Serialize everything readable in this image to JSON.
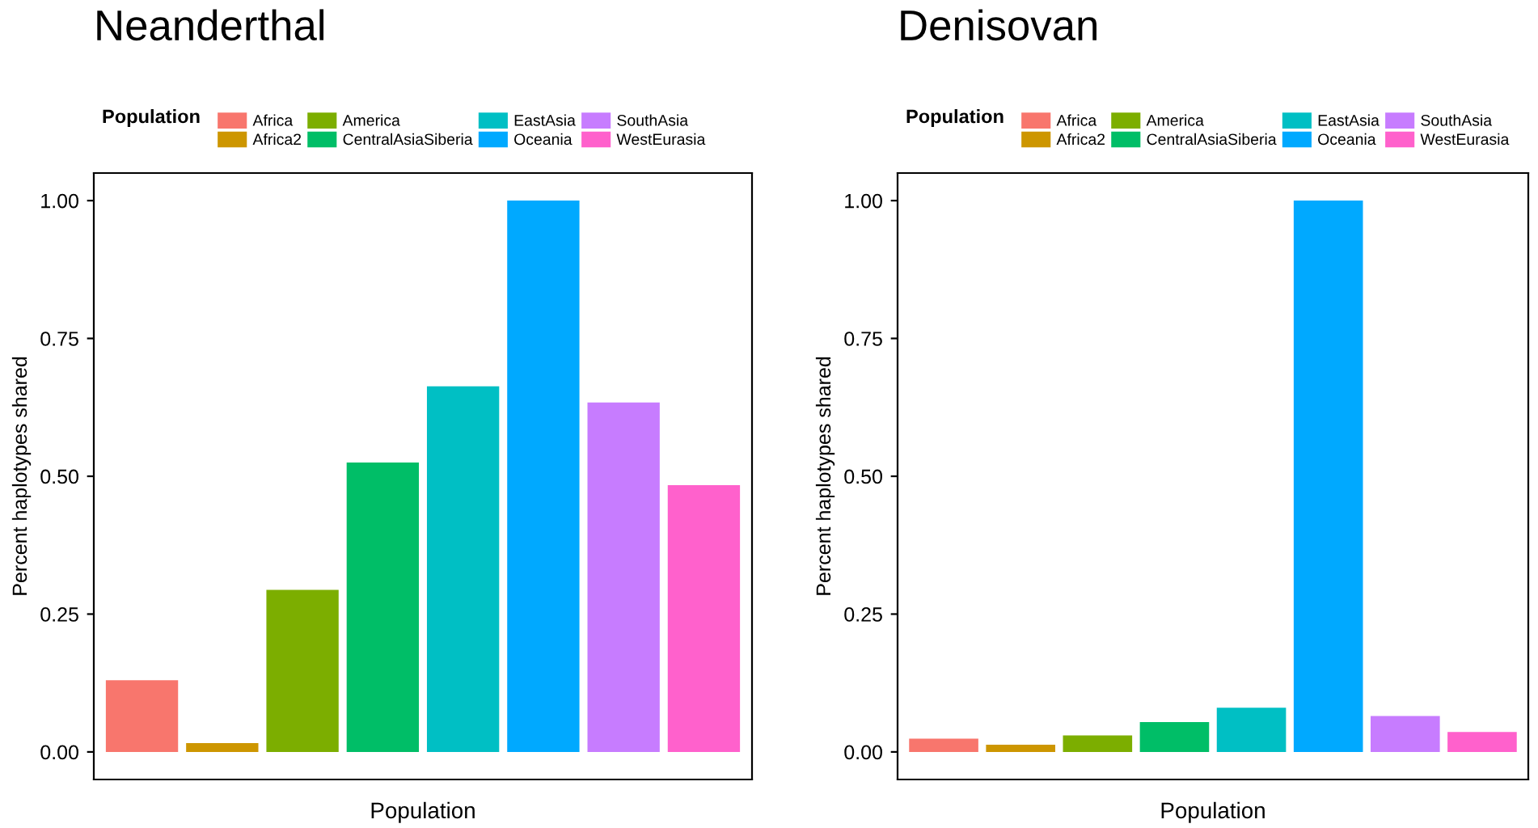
{
  "chart_data": [
    {
      "type": "bar",
      "title": "Neanderthal",
      "xlabel": "Population",
      "ylabel": "Percent haplotypes shared",
      "legend_title": "Population",
      "legend": "top",
      "tick_labels": "y",
      "categories": [
        null,
        null,
        null,
        null,
        null,
        null,
        null,
        null
      ],
      "series": [
        {
          "name": "Africa",
          "color": "#f8766d",
          "values": [
            0.13,
            null,
            null,
            null,
            null,
            null,
            null,
            null
          ]
        },
        {
          "name": "Africa2",
          "color": "#cd9600",
          "values": [
            null,
            0.016,
            null,
            null,
            null,
            null,
            null,
            null
          ]
        },
        {
          "name": "America",
          "color": "#7cae00",
          "values": [
            null,
            null,
            0.294,
            null,
            null,
            null,
            null,
            null
          ]
        },
        {
          "name": "CentralAsiaSiberia",
          "color": "#00be67",
          "values": [
            null,
            null,
            null,
            0.525,
            null,
            null,
            null,
            null
          ]
        },
        {
          "name": "EastAsia",
          "color": "#00bfc4",
          "values": [
            null,
            null,
            null,
            null,
            0.663,
            null,
            null,
            null
          ]
        },
        {
          "name": "Oceania",
          "color": "#00a9ff",
          "values": [
            null,
            null,
            null,
            null,
            null,
            1.0,
            null,
            null
          ]
        },
        {
          "name": "SouthAsia",
          "color": "#c77cff",
          "values": [
            null,
            null,
            null,
            null,
            null,
            null,
            0.634,
            null
          ]
        },
        {
          "name": "WestEurasia",
          "color": "#ff61cc",
          "values": [
            null,
            null,
            null,
            null,
            null,
            null,
            null,
            0.484
          ]
        }
      ],
      "ylim": [
        -0.05,
        1.05
      ],
      "yticks": [
        {
          "value": 0,
          "label": "0.00"
        },
        {
          "value": 0.25,
          "label": "0.25"
        },
        {
          "value": 0.5,
          "label": "0.50"
        },
        {
          "value": 0.75,
          "label": "0.75"
        },
        {
          "value": 1,
          "label": "1.00"
        }
      ]
    },
    {
      "type": "bar",
      "title": "Denisovan",
      "xlabel": "Population",
      "ylabel": "Percent haplotypes shared",
      "legend_title": "Population",
      "legend": "top",
      "tick_labels": "y",
      "categories": [
        null,
        null,
        null,
        null,
        null,
        null,
        null,
        null
      ],
      "series": [
        {
          "name": "Africa",
          "color": "#f8766d",
          "values": [
            0.024,
            null,
            null,
            null,
            null,
            null,
            null,
            null
          ]
        },
        {
          "name": "Africa2",
          "color": "#cd9600",
          "values": [
            null,
            0.013,
            null,
            null,
            null,
            null,
            null,
            null
          ]
        },
        {
          "name": "America",
          "color": "#7cae00",
          "values": [
            null,
            null,
            0.03,
            null,
            null,
            null,
            null,
            null
          ]
        },
        {
          "name": "CentralAsiaSiberia",
          "color": "#00be67",
          "values": [
            null,
            null,
            null,
            0.054,
            null,
            null,
            null,
            null
          ]
        },
        {
          "name": "EastAsia",
          "color": "#00bfc4",
          "values": [
            null,
            null,
            null,
            null,
            0.08,
            null,
            null,
            null
          ]
        },
        {
          "name": "Oceania",
          "color": "#00a9ff",
          "values": [
            null,
            null,
            null,
            null,
            null,
            1.0,
            null,
            null
          ]
        },
        {
          "name": "SouthAsia",
          "color": "#c77cff",
          "values": [
            null,
            null,
            null,
            null,
            null,
            null,
            0.065,
            null
          ]
        },
        {
          "name": "WestEurasia",
          "color": "#ff61cc",
          "values": [
            null,
            null,
            null,
            null,
            null,
            null,
            null,
            0.036
          ]
        }
      ],
      "ylim": [
        -0.05,
        1.05
      ],
      "yticks": [
        {
          "value": 0,
          "label": "0.00"
        },
        {
          "value": 0.25,
          "label": "0.25"
        },
        {
          "value": 0.5,
          "label": "0.50"
        },
        {
          "value": 0.75,
          "label": "0.75"
        },
        {
          "value": 1,
          "label": "1.00"
        }
      ]
    }
  ]
}
